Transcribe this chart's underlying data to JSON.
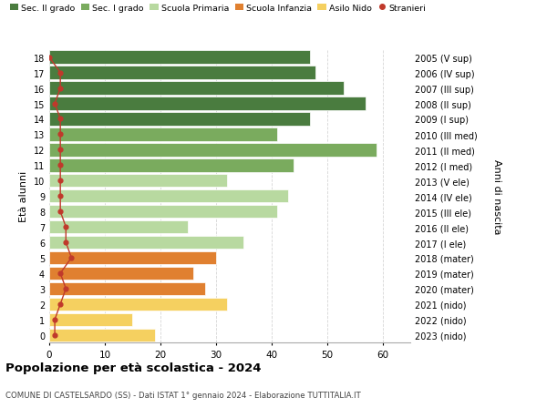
{
  "ages": [
    18,
    17,
    16,
    15,
    14,
    13,
    12,
    11,
    10,
    9,
    8,
    7,
    6,
    5,
    4,
    3,
    2,
    1,
    0
  ],
  "values": [
    47,
    48,
    53,
    57,
    47,
    41,
    59,
    44,
    32,
    43,
    41,
    25,
    35,
    30,
    26,
    28,
    32,
    15,
    19
  ],
  "stranieri": [
    0,
    2,
    2,
    1,
    2,
    2,
    2,
    2,
    2,
    2,
    2,
    3,
    3,
    4,
    2,
    3,
    2,
    1,
    1
  ],
  "categories": [
    "Sec. II grado",
    "Sec. I grado",
    "Scuola Primaria",
    "Scuola Infanzia",
    "Asilo Nido",
    "Stranieri"
  ],
  "bar_colors": [
    "#4a7c3f",
    "#7aab5e",
    "#b8d9a0",
    "#e08030",
    "#f5d060",
    "#c0392b"
  ],
  "right_labels": [
    "2005 (V sup)",
    "2006 (IV sup)",
    "2007 (III sup)",
    "2008 (II sup)",
    "2009 (I sup)",
    "2010 (III med)",
    "2011 (II med)",
    "2012 (I med)",
    "2013 (V ele)",
    "2014 (IV ele)",
    "2015 (III ele)",
    "2016 (II ele)",
    "2017 (I ele)",
    "2018 (mater)",
    "2019 (mater)",
    "2020 (mater)",
    "2021 (nido)",
    "2022 (nido)",
    "2023 (nido)"
  ],
  "age_groups": {
    "sec2": [
      18,
      17,
      16,
      15,
      14
    ],
    "sec1": [
      13,
      12,
      11
    ],
    "primaria": [
      10,
      9,
      8,
      7,
      6
    ],
    "infanzia": [
      5,
      4,
      3
    ],
    "nido": [
      2,
      1,
      0
    ]
  },
  "title": "Popolazione per età scolastica - 2024",
  "subtitle": "COMUNE DI CASTELSARDO (SS) - Dati ISTAT 1° gennaio 2024 - Elaborazione TUTTITALIA.IT",
  "xlabel_label": "Età alunni",
  "ylabel_label": "Anni di nascita",
  "xlim": [
    0,
    65
  ],
  "xticks": [
    0,
    10,
    20,
    30,
    40,
    50,
    60
  ],
  "bg_color": "#ffffff",
  "grid_color": "#cccccc"
}
